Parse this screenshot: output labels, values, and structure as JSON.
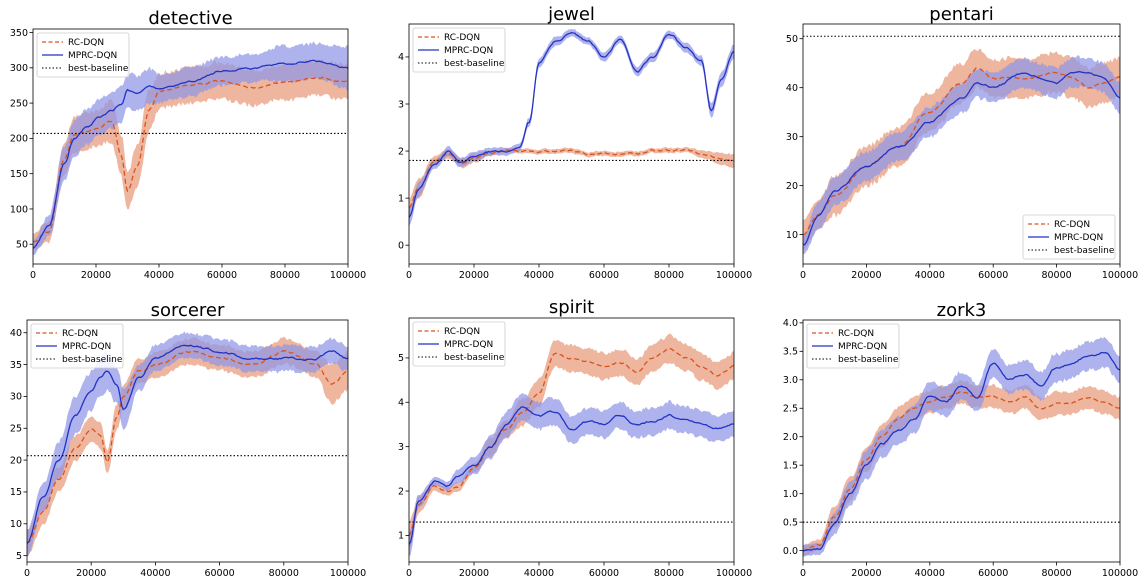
{
  "figure": {
    "legend_labels": [
      "RC-DQN",
      "MPRC-DQN",
      "best-baseline"
    ],
    "colors": {
      "rc": "#d9541e",
      "rc_band": "#e9a283",
      "mprc": "#2333c4",
      "mprc_band": "#8f96e6",
      "baseline": "#000000"
    }
  },
  "chart_data": [
    {
      "type": "line",
      "title": "detective",
      "xlim": [
        0,
        100000
      ],
      "ylim": [
        22,
        355
      ],
      "xticks": [
        0,
        20000,
        40000,
        60000,
        80000,
        100000
      ],
      "yticks": [
        50,
        100,
        150,
        200,
        250,
        300,
        350
      ],
      "baseline": 207,
      "legend": "top-left",
      "x": [
        0,
        5000,
        10000,
        13000,
        17000,
        21000,
        25000,
        28000,
        30000,
        33000,
        37000,
        40000,
        50000,
        60000,
        70000,
        80000,
        90000,
        100000
      ],
      "series": [
        {
          "name": "RC-DQN",
          "values": [
            55,
            70,
            170,
            205,
            210,
            215,
            225,
            175,
            125,
            160,
            240,
            265,
            275,
            280,
            270,
            280,
            285,
            280
          ],
          "band": [
            12,
            15,
            25,
            25,
            25,
            25,
            30,
            30,
            25,
            30,
            30,
            25,
            25,
            25,
            25,
            25,
            25,
            25
          ]
        },
        {
          "name": "MPRC-DQN",
          "values": [
            45,
            75,
            165,
            200,
            215,
            230,
            240,
            250,
            270,
            265,
            275,
            270,
            280,
            295,
            300,
            305,
            310,
            300
          ],
          "band": [
            10,
            15,
            25,
            25,
            25,
            25,
            25,
            25,
            25,
            25,
            25,
            20,
            20,
            20,
            20,
            25,
            25,
            30
          ]
        }
      ]
    },
    {
      "type": "line",
      "title": "jewel",
      "xlim": [
        0,
        100000
      ],
      "ylim": [
        -0.4,
        4.7
      ],
      "xticks": [
        0,
        20000,
        40000,
        60000,
        80000,
        100000
      ],
      "yticks": [
        0,
        1,
        2,
        3,
        4
      ],
      "baseline": 1.8,
      "legend": "top-left",
      "x": [
        0,
        3000,
        8000,
        12000,
        16000,
        20000,
        25000,
        30000,
        34000,
        37000,
        40000,
        45000,
        50000,
        55000,
        60000,
        65000,
        70000,
        75000,
        80000,
        85000,
        90000,
        93000,
        96000,
        100000
      ],
      "series": [
        {
          "name": "RC-DQN",
          "values": [
            0.8,
            1.2,
            1.8,
            1.95,
            1.75,
            1.85,
            1.95,
            2.0,
            2.0,
            2.0,
            2.0,
            2.0,
            2.0,
            1.95,
            1.95,
            1.95,
            1.95,
            2.0,
            2.0,
            2.0,
            1.95,
            1.9,
            1.85,
            1.8
          ],
          "band": [
            0.2,
            0.2,
            0.1,
            0.1,
            0.1,
            0.1,
            0.05,
            0.05,
            0.05,
            0.05,
            0.05,
            0.05,
            0.05,
            0.05,
            0.05,
            0.05,
            0.05,
            0.05,
            0.05,
            0.05,
            0.08,
            0.1,
            0.12,
            0.15
          ]
        },
        {
          "name": "MPRC-DQN",
          "values": [
            0.6,
            1.2,
            1.75,
            2.0,
            1.75,
            1.9,
            2.0,
            2.0,
            2.05,
            2.6,
            3.9,
            4.3,
            4.5,
            4.35,
            4.0,
            4.4,
            3.7,
            4.0,
            4.5,
            4.2,
            3.9,
            2.85,
            3.5,
            4.1
          ],
          "band": [
            0.2,
            0.15,
            0.1,
            0.1,
            0.1,
            0.1,
            0.08,
            0.08,
            0.08,
            0.1,
            0.1,
            0.1,
            0.08,
            0.08,
            0.1,
            0.08,
            0.1,
            0.1,
            0.08,
            0.1,
            0.1,
            0.15,
            0.15,
            0.15
          ]
        }
      ]
    },
    {
      "type": "line",
      "title": "pentari",
      "xlim": [
        0,
        100000
      ],
      "ylim": [
        4,
        53
      ],
      "xticks": [
        0,
        20000,
        40000,
        60000,
        80000,
        100000
      ],
      "yticks": [
        10,
        20,
        30,
        40,
        50
      ],
      "baseline": 50.5,
      "legend": "bottom-right",
      "x": [
        0,
        5000,
        10000,
        20000,
        30000,
        40000,
        50000,
        55000,
        60000,
        70000,
        80000,
        85000,
        90000,
        95000,
        100000
      ],
      "series": [
        {
          "name": "RC-DQN",
          "values": [
            10,
            14,
            18,
            24,
            28,
            35,
            41,
            44,
            42,
            42,
            43,
            42,
            40,
            41,
            42
          ],
          "band": [
            3,
            3,
            4,
            4,
            4,
            4,
            4,
            4,
            4,
            4,
            4,
            4,
            4,
            4,
            4
          ]
        },
        {
          "name": "MPRC-DQN",
          "values": [
            8,
            14,
            19,
            24,
            28,
            33,
            38,
            41,
            40,
            43,
            41,
            43,
            43,
            42,
            38
          ],
          "band": [
            2,
            3,
            3,
            3,
            3,
            3,
            3,
            3,
            3,
            3,
            3,
            3,
            3,
            3,
            3
          ]
        }
      ]
    },
    {
      "type": "line",
      "title": "sorcerer",
      "xlim": [
        0,
        100000
      ],
      "ylim": [
        4,
        42
      ],
      "xticks": [
        0,
        20000,
        40000,
        60000,
        80000,
        100000
      ],
      "yticks": [
        5,
        10,
        15,
        20,
        25,
        30,
        35,
        40
      ],
      "baseline": 20.7,
      "legend": "top-left",
      "x": [
        0,
        5000,
        10000,
        15000,
        20000,
        23000,
        25000,
        28000,
        30000,
        35000,
        40000,
        50000,
        60000,
        70000,
        80000,
        90000,
        95000,
        100000
      ],
      "series": [
        {
          "name": "RC-DQN",
          "values": [
            7,
            12,
            17,
            22,
            25,
            24,
            20,
            27,
            30,
            34,
            35,
            37,
            36,
            35,
            37,
            35,
            32,
            34
          ],
          "band": [
            2,
            2,
            2,
            2,
            2,
            2,
            2,
            2,
            2,
            2,
            2,
            2,
            2,
            2,
            2,
            2,
            3,
            3
          ]
        },
        {
          "name": "MPRC-DQN",
          "values": [
            7,
            14,
            20,
            27,
            31,
            33,
            34,
            32,
            28,
            33,
            36,
            38,
            37,
            36,
            36,
            36,
            37,
            36
          ],
          "band": [
            2,
            2,
            3,
            3,
            3,
            3,
            3,
            3,
            3,
            2,
            2,
            2,
            2,
            2,
            2,
            2,
            2,
            2
          ]
        }
      ]
    },
    {
      "type": "line",
      "title": "spirit",
      "xlim": [
        0,
        100000
      ],
      "ylim": [
        0.4,
        5.9
      ],
      "xticks": [
        0,
        20000,
        40000,
        60000,
        80000,
        100000
      ],
      "yticks": [
        1,
        2,
        3,
        4,
        5
      ],
      "baseline": 1.3,
      "legend": "top-left",
      "x": [
        0,
        3000,
        8000,
        12000,
        15000,
        20000,
        25000,
        30000,
        35000,
        40000,
        45000,
        50000,
        55000,
        60000,
        65000,
        70000,
        75000,
        80000,
        85000,
        90000,
        95000,
        100000
      ],
      "series": [
        {
          "name": "RC-DQN",
          "values": [
            1.0,
            1.7,
            2.1,
            2.0,
            2.1,
            2.5,
            3.0,
            3.4,
            3.8,
            4.2,
            5.1,
            5.0,
            4.9,
            4.8,
            4.9,
            4.7,
            5.0,
            5.2,
            5.0,
            4.8,
            4.6,
            4.8
          ],
          "band": [
            0.3,
            0.2,
            0.1,
            0.1,
            0.1,
            0.1,
            0.2,
            0.2,
            0.3,
            0.3,
            0.3,
            0.3,
            0.3,
            0.3,
            0.3,
            0.3,
            0.3,
            0.3,
            0.3,
            0.3,
            0.3,
            0.3
          ]
        },
        {
          "name": "MPRC-DQN",
          "values": [
            0.8,
            1.8,
            2.2,
            2.1,
            2.3,
            2.6,
            3.0,
            3.5,
            3.9,
            3.7,
            3.8,
            3.4,
            3.6,
            3.5,
            3.7,
            3.5,
            3.6,
            3.7,
            3.6,
            3.5,
            3.4,
            3.5
          ],
          "band": [
            0.3,
            0.15,
            0.1,
            0.1,
            0.15,
            0.2,
            0.25,
            0.3,
            0.3,
            0.3,
            0.3,
            0.3,
            0.3,
            0.3,
            0.3,
            0.3,
            0.3,
            0.3,
            0.3,
            0.3,
            0.3,
            0.3
          ]
        }
      ]
    },
    {
      "type": "line",
      "title": "zork3",
      "xlim": [
        0,
        100000
      ],
      "ylim": [
        -0.2,
        4.05
      ],
      "xticks": [
        0,
        20000,
        40000,
        60000,
        80000,
        100000
      ],
      "yticks": [
        0.0,
        0.5,
        1.0,
        1.5,
        2.0,
        2.5,
        3.0,
        3.5,
        4.0
      ],
      "baseline": 0.5,
      "legend": "top-left",
      "x": [
        0,
        5000,
        10000,
        15000,
        20000,
        25000,
        30000,
        35000,
        40000,
        45000,
        50000,
        55000,
        60000,
        65000,
        70000,
        75000,
        80000,
        85000,
        90000,
        95000,
        100000
      ],
      "series": [
        {
          "name": "RC-DQN",
          "values": [
            0.0,
            0.1,
            0.6,
            1.1,
            1.6,
            2.0,
            2.3,
            2.5,
            2.6,
            2.7,
            2.8,
            2.7,
            2.7,
            2.6,
            2.7,
            2.5,
            2.6,
            2.6,
            2.7,
            2.6,
            2.5
          ],
          "band": [
            0.1,
            0.1,
            0.2,
            0.2,
            0.2,
            0.2,
            0.2,
            0.2,
            0.2,
            0.2,
            0.2,
            0.2,
            0.2,
            0.2,
            0.2,
            0.2,
            0.2,
            0.2,
            0.2,
            0.2,
            0.2
          ]
        },
        {
          "name": "MPRC-DQN",
          "values": [
            0.0,
            0.05,
            0.5,
            1.0,
            1.5,
            1.9,
            2.1,
            2.3,
            2.7,
            2.6,
            2.9,
            2.7,
            3.3,
            3.0,
            3.1,
            2.9,
            3.2,
            3.3,
            3.4,
            3.5,
            3.2
          ],
          "band": [
            0.1,
            0.1,
            0.2,
            0.2,
            0.25,
            0.25,
            0.25,
            0.25,
            0.25,
            0.25,
            0.25,
            0.25,
            0.25,
            0.25,
            0.25,
            0.25,
            0.25,
            0.25,
            0.25,
            0.25,
            0.25
          ]
        }
      ]
    }
  ]
}
